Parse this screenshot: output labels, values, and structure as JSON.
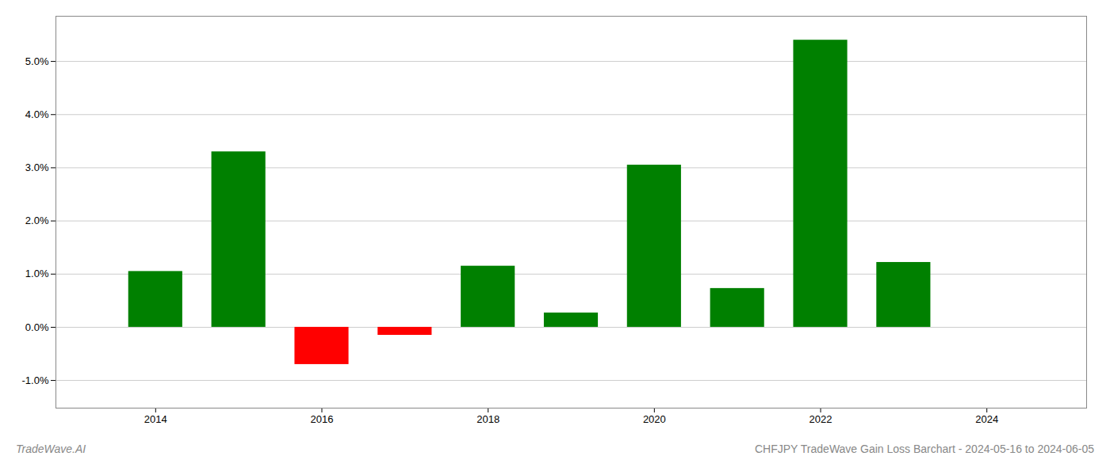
{
  "chart_data": {
    "type": "bar",
    "title": "CHFJPY TradeWave Gain Loss Barchart - 2024-05-16 to 2024-06-05",
    "annotations": [
      "TradeWave.AI"
    ],
    "x": [
      2014,
      2015,
      2016,
      2017,
      2018,
      2019,
      2020,
      2021,
      2022,
      2023
    ],
    "values": [
      1.05,
      3.3,
      -0.7,
      -0.15,
      1.15,
      0.27,
      3.05,
      0.73,
      5.4,
      1.22
    ],
    "colors": [
      "#008000",
      "#008000",
      "#ff0000",
      "#ff0000",
      "#008000",
      "#008000",
      "#008000",
      "#008000",
      "#008000",
      "#008000"
    ],
    "xlim": [
      2012.8,
      2025.2
    ],
    "xticks": [
      2014,
      2016,
      2018,
      2020,
      2022,
      2024
    ],
    "ylim": [
      -1.52,
      5.85
    ],
    "yticks": [
      {
        "value": -1.0,
        "label": "-1.0%"
      },
      {
        "value": 0.0,
        "label": "0.0%"
      },
      {
        "value": 1.0,
        "label": "1.0%"
      },
      {
        "value": 2.0,
        "label": "2.0%"
      },
      {
        "value": 3.0,
        "label": "3.0%"
      },
      {
        "value": 4.0,
        "label": "4.0%"
      },
      {
        "value": 5.0,
        "label": "5.0%"
      }
    ],
    "grid": true
  }
}
